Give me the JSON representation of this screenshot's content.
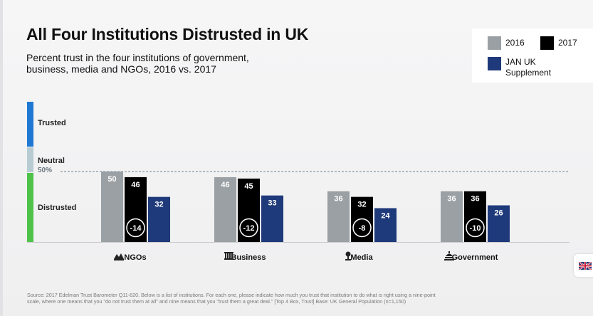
{
  "title": "All Four Institutions Distrusted in UK",
  "subtitle": "Percent trust in the four institutions of government, business, media and NGOs, 2016 vs. 2017",
  "legend": [
    {
      "label": "2016",
      "color": "#9aa0a4"
    },
    {
      "label": "2017",
      "color": "#000000"
    },
    {
      "label": "JAN UK Supplement",
      "color": "#1f3a7a"
    }
  ],
  "scale": {
    "trusted": "Trusted",
    "neutral": "Neutral",
    "distrusted": "Distrusted",
    "threshold_label": "50%",
    "colors": {
      "trusted": "#1f78d1",
      "neutral": "#b8cbd3",
      "distrusted": "#4fc24a"
    }
  },
  "chart_data": {
    "type": "bar",
    "categories": [
      "NGOs",
      "Business",
      "Media",
      "Government"
    ],
    "category_icons": [
      "ngo-icon",
      "business-icon",
      "media-icon",
      "government-icon"
    ],
    "series": [
      {
        "name": "2016",
        "values": [
          50,
          46,
          36,
          36
        ],
        "color": "#9aa0a4"
      },
      {
        "name": "2017",
        "values": [
          46,
          45,
          32,
          36
        ],
        "color": "#000000"
      },
      {
        "name": "JAN UK Supplement",
        "values": [
          32,
          33,
          24,
          26
        ],
        "color": "#1f3a7a"
      }
    ],
    "change_labels": [
      "-14",
      "-12",
      "-8",
      "-10"
    ],
    "threshold": 50,
    "ylim": [
      0,
      50
    ]
  },
  "footer": "Source: 2017 Edelman Trust Barometer Q11-620. Below is a list of institutions. For each one, please indicate how much you trust that institution to do what is right using a nine-point scale, where one means that you \"do not trust them at all\" and nine means that you \"trust them a great deal.\" [Top 4 Box, Trust] Base: UK General Population (n=1,150)",
  "flag_icon": "uk-flag-icon"
}
